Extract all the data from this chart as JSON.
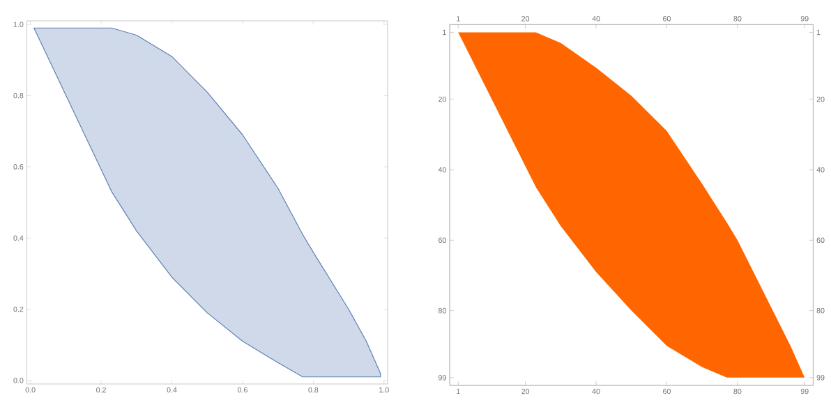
{
  "chart_data": [
    {
      "type": "area",
      "xlim": [
        -0.01,
        1.01
      ],
      "ylim": [
        -0.01,
        1.01
      ],
      "xticks": [
        {
          "value": 0,
          "label": "0.0"
        },
        {
          "value": 0.2,
          "label": "0.2"
        },
        {
          "value": 0.4,
          "label": "0.4"
        },
        {
          "value": 0.6,
          "label": "0.6"
        },
        {
          "value": 0.8,
          "label": "0.8"
        },
        {
          "value": 1,
          "label": "1.0"
        }
      ],
      "yticks": [
        {
          "value": 0,
          "label": "0.0"
        },
        {
          "value": 0.2,
          "label": "0.2"
        },
        {
          "value": 0.4,
          "label": "0.4"
        },
        {
          "value": 0.6,
          "label": "0.6"
        },
        {
          "value": 0.8,
          "label": "0.8"
        },
        {
          "value": 1,
          "label": "1.0"
        }
      ],
      "series": [
        {
          "color": "#5e81b5",
          "line_style": "solid",
          "x": [
            0.01,
            0.23,
            0.3,
            0.4,
            0.5,
            0.6,
            0.7,
            0.77,
            0.8,
            0.9,
            0.95,
            0.99
          ],
          "values": [
            null,
            null,
            null,
            null,
            null,
            null,
            null,
            null,
            null,
            null,
            null,
            null
          ],
          "upper": [
            0.99,
            0.99,
            0.97,
            0.91,
            0.81,
            0.69,
            0.54,
            0.41,
            0.36,
            0.2,
            0.11,
            0.02
          ],
          "lower": [
            0.99,
            0.53,
            0.42,
            0.29,
            0.19,
            0.11,
            0.05,
            0.01,
            0.01,
            0.01,
            0.01,
            0.01
          ]
        }
      ]
    },
    {
      "type": "area",
      "xlim": [
        -1.4,
        101.4
      ],
      "ylim": [
        101.2,
        -1.2
      ],
      "xticks": [
        1,
        20,
        40,
        60,
        80,
        99
      ],
      "yticks": [
        1,
        20,
        40,
        60,
        80,
        99
      ],
      "x2lim": [
        -1.4,
        101.4
      ],
      "y2lim": [
        101.2,
        -1.2
      ],
      "x2ticks": [
        1,
        20,
        40,
        60,
        80,
        99
      ],
      "y2ticks": [
        1,
        20,
        40,
        60,
        80,
        99
      ],
      "series": [
        {
          "color": "#ff6600",
          "x": [
            1,
            23,
            30,
            40,
            50,
            60,
            70,
            77,
            80,
            90,
            95,
            99
          ],
          "values": [
            null,
            null,
            null,
            null,
            null,
            null,
            null,
            null,
            null,
            null,
            null,
            null
          ],
          "upper": [
            1,
            1,
            4,
            11,
            19,
            29,
            44,
            55,
            60,
            80,
            90,
            99
          ],
          "lower": [
            1,
            45,
            56,
            69,
            80,
            90,
            96,
            99,
            99,
            99,
            99,
            99
          ]
        }
      ]
    }
  ]
}
